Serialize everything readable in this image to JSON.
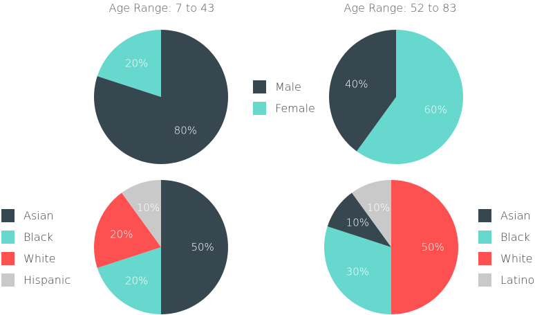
{
  "colors": {
    "dark": "#36474f",
    "teal": "#67d8ce",
    "red": "#fd5051",
    "gray": "#c9c9c9"
  },
  "titles": {
    "left": "Age Range: 7 to 43",
    "right": "Age Range: 52 to 83"
  },
  "legends": {
    "gender": [
      {
        "label": "Male",
        "color": "#36474f"
      },
      {
        "label": "Female",
        "color": "#67d8ce"
      }
    ],
    "race_left": [
      {
        "label": "Asian",
        "color": "#36474f"
      },
      {
        "label": "Black",
        "color": "#67d8ce"
      },
      {
        "label": "White",
        "color": "#fd5051"
      },
      {
        "label": "Hispanic",
        "color": "#c9c9c9"
      }
    ],
    "race_right": [
      {
        "label": "Asian",
        "color": "#36474f"
      },
      {
        "label": "Black",
        "color": "#67d8ce"
      },
      {
        "label": "White",
        "color": "#fd5051"
      },
      {
        "label": "Latino",
        "color": "#c9c9c9"
      }
    ]
  },
  "chart_data": [
    {
      "type": "pie",
      "title": "Age Range: 7 to 43",
      "slices": [
        {
          "label": "Male",
          "value": 80,
          "text": "80%",
          "color": "#36474f",
          "text_color": "#ffffff"
        },
        {
          "label": "Female",
          "value": 20,
          "text": "20%",
          "color": "#67d8ce",
          "text_color": "#ffffff"
        }
      ]
    },
    {
      "type": "pie",
      "title": "Age Range: 52 to 83",
      "slices": [
        {
          "label": "Female",
          "value": 60,
          "text": "60%",
          "color": "#67d8ce",
          "text_color": "#ffffff"
        },
        {
          "label": "Male",
          "value": 40,
          "text": "40%",
          "color": "#36474f",
          "text_color": "#ffffff"
        }
      ]
    },
    {
      "type": "pie",
      "slices": [
        {
          "label": "Asian",
          "value": 50,
          "text": "50%",
          "color": "#36474f",
          "text_color": "#ffffff"
        },
        {
          "label": "Black",
          "value": 20,
          "text": "20%",
          "color": "#67d8ce",
          "text_color": "#ffffff"
        },
        {
          "label": "White",
          "value": 20,
          "text": "20%",
          "color": "#fd5051",
          "text_color": "#ffffff"
        },
        {
          "label": "Hispanic",
          "value": 10,
          "text": "10%",
          "color": "#c9c9c9",
          "text_color": "#ffffff"
        }
      ]
    },
    {
      "type": "pie",
      "slices": [
        {
          "label": "White",
          "value": 50,
          "text": "50%",
          "color": "#fd5051",
          "text_color": "#ffffff"
        },
        {
          "label": "Black",
          "value": 30,
          "text": "30%",
          "color": "#67d8ce",
          "text_color": "#ffffff"
        },
        {
          "label": "Asian",
          "value": 10,
          "text": "10%",
          "color": "#36474f",
          "text_color": "#ffffff"
        },
        {
          "label": "Latino",
          "value": 10,
          "text": "10%",
          "color": "#c9c9c9",
          "text_color": "#ffffff"
        }
      ]
    }
  ]
}
